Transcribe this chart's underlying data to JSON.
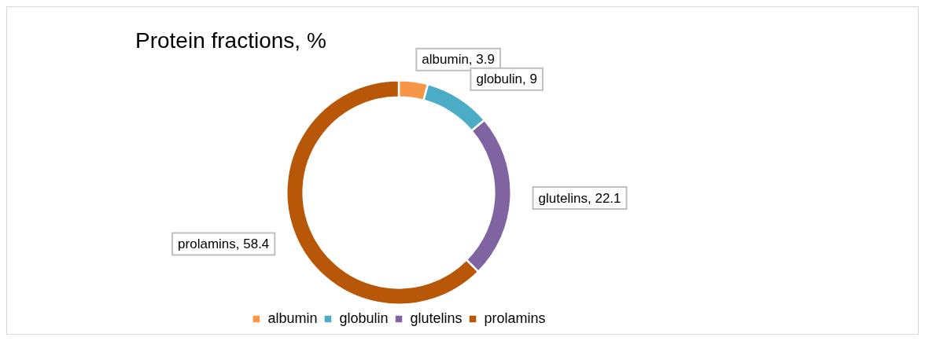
{
  "chart_data": {
    "type": "donut",
    "title": "Protein fractions, %",
    "categories": [
      "albumin",
      "globulin",
      "glutelins",
      "prolamins"
    ],
    "values": [
      3.9,
      9,
      22.1,
      58.4
    ],
    "colors": [
      "#f79646",
      "#4bacc6",
      "#8064a2",
      "#b85707"
    ],
    "value_labels": [
      "albumin, 3.9",
      "globulin, 9",
      "glutelins, 22.1",
      "prolamins, 58.4"
    ],
    "legend": "bottom"
  }
}
